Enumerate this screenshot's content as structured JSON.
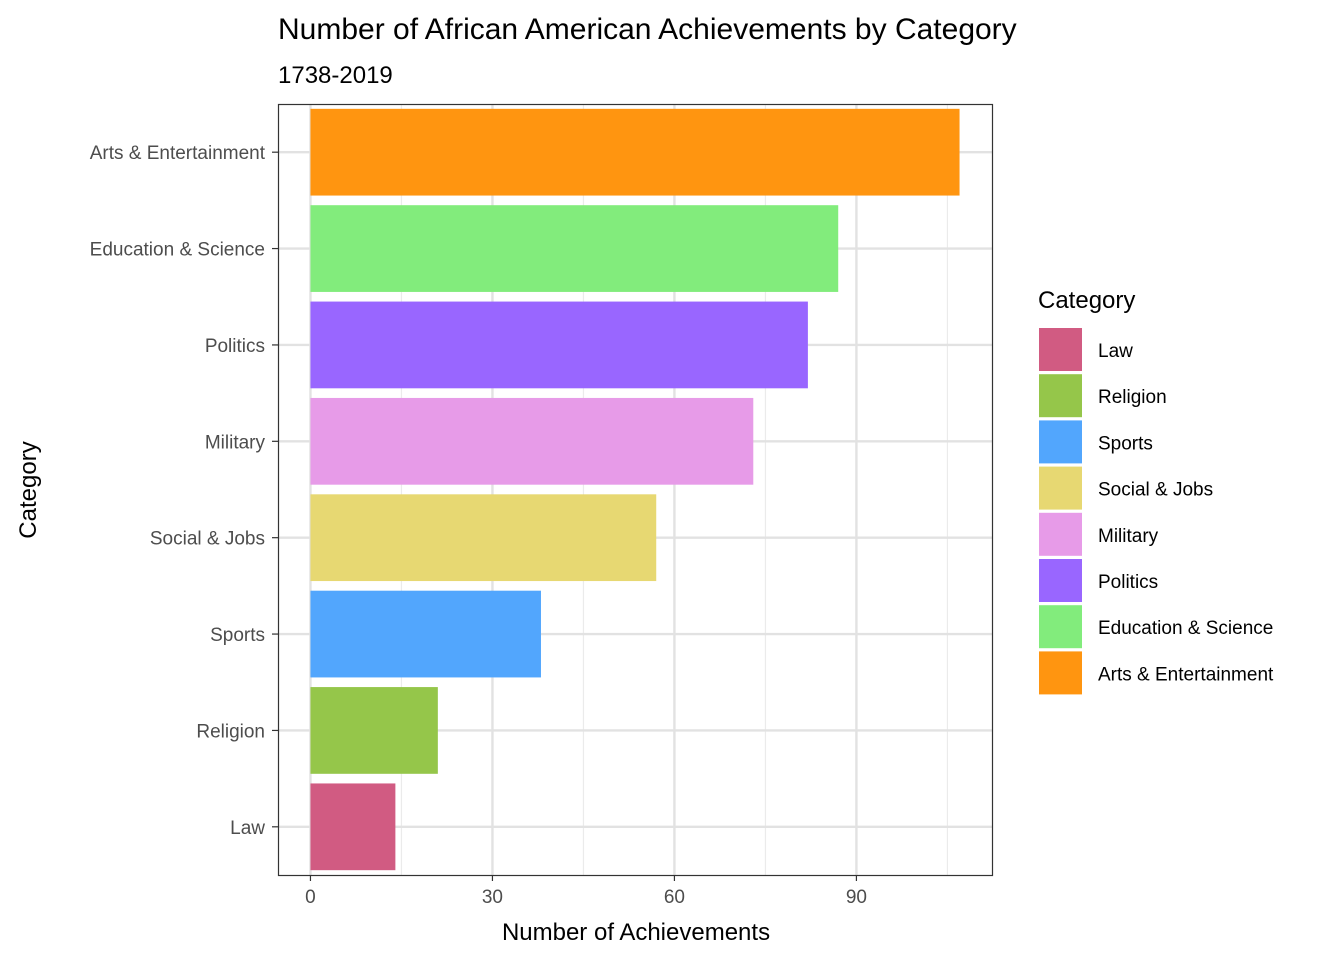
{
  "chart_data": {
    "type": "bar",
    "orientation": "horizontal",
    "title": "Number of African American Achievements by Category",
    "subtitle": "1738-2019",
    "xlabel": "Number of Achievements",
    "ylabel": "Category",
    "categories": [
      "Law",
      "Religion",
      "Sports",
      "Social & Jobs",
      "Military",
      "Politics",
      "Education & Science",
      "Arts & Entertainment"
    ],
    "values": [
      14,
      21,
      38,
      57,
      73,
      82,
      87,
      107
    ],
    "colors": [
      "#D15B82",
      "#95C64A",
      "#52A6FD",
      "#E7D872",
      "#E79BE8",
      "#9966FF",
      "#82EC7C",
      "#FF9510"
    ],
    "xlim": [
      -5.35,
      112.35
    ],
    "xticks": [
      0,
      30,
      60,
      90
    ],
    "xtick_labels": [
      "0",
      "30",
      "60",
      "90"
    ],
    "grid": true,
    "legend": {
      "title": "Category",
      "position": "right",
      "entries": [
        "Law",
        "Religion",
        "Sports",
        "Social & Jobs",
        "Military",
        "Politics",
        "Education & Science",
        "Arts & Entertainment"
      ]
    }
  }
}
